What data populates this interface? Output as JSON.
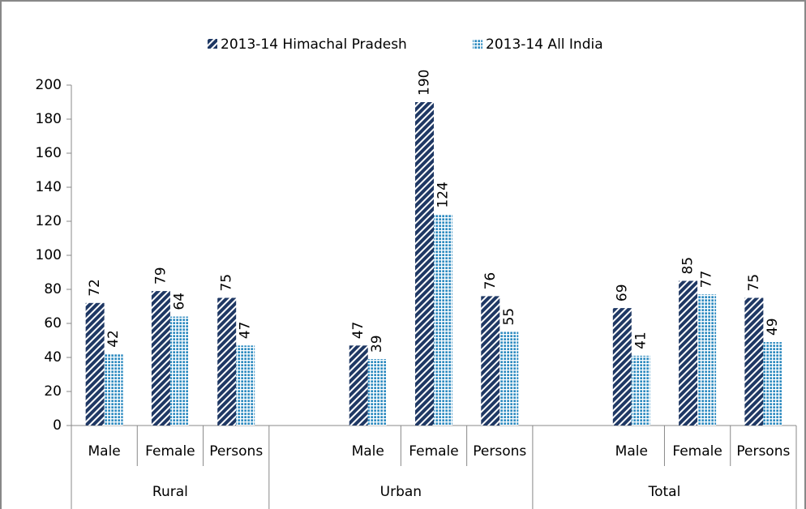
{
  "chart_data": {
    "type": "bar",
    "groups": [
      "Rural",
      "Urban",
      "Total"
    ],
    "categories": [
      "Male",
      "Female",
      "Persons",
      null,
      "Male",
      "Female",
      "Persons",
      null,
      "Male",
      "Female",
      "Persons"
    ],
    "series": [
      {
        "name": "2013-14 Himachal Pradesh",
        "color": "#1f3864",
        "values": [
          72,
          79,
          75,
          null,
          47,
          190,
          76,
          null,
          69,
          85,
          75
        ]
      },
      {
        "name": "2013-14 All India",
        "color": "#2e8bc0",
        "values": [
          42,
          64,
          47,
          null,
          39,
          124,
          55,
          null,
          41,
          77,
          49
        ]
      }
    ],
    "ylim": [
      0,
      200
    ],
    "yticks": [
      0,
      20,
      40,
      60,
      80,
      100,
      120,
      140,
      160,
      180,
      200
    ],
    "legend": "top",
    "grid": false
  }
}
